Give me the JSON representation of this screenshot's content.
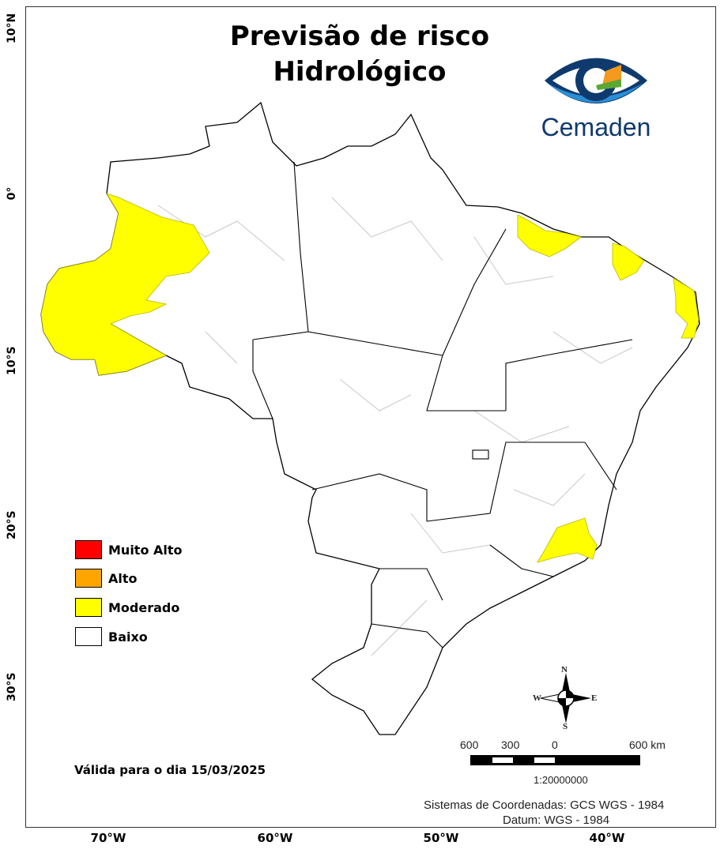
{
  "title": {
    "line1": "Previsão de risco",
    "line2": "Hidrológico"
  },
  "logo": {
    "text": "Cemaden",
    "colors": {
      "dark_blue": "#0f3a6e",
      "light_blue": "#2b8fd6",
      "orange": "#f39a1e",
      "green": "#5aa832"
    }
  },
  "axes": {
    "lat_labels": [
      "10°N",
      "0°",
      "10°S",
      "20°S",
      "30°S"
    ],
    "lon_labels": [
      "70°W",
      "60°W",
      "50°W",
      "40°W"
    ]
  },
  "legend": [
    {
      "label": "Muito Alto",
      "color": "#ff0000"
    },
    {
      "label": "Alto",
      "color": "#ffa500"
    },
    {
      "label": "Moderado",
      "color": "#ffff00"
    },
    {
      "label": "Baixo",
      "color": "#ffffff"
    }
  ],
  "valid_date": "Válida para o dia 15/03/2025",
  "compass": {
    "n": "N",
    "s": "S",
    "e": "E",
    "w": "W"
  },
  "scale_bar": {
    "labels": [
      "600",
      "300",
      "0",
      "600 km"
    ],
    "ratio": "1:20000000"
  },
  "coordinate_system": "Sistemas de Coordenadas: GCS WGS - 1984",
  "datum": "Datum: WGS - 1984"
}
